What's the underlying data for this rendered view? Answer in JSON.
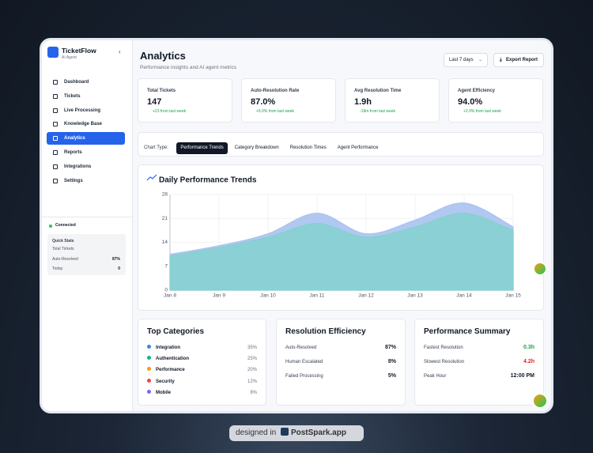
{
  "sidebar": {
    "brand": "TicketFlow",
    "subtitle": "AI Agent",
    "nav": [
      "Dashboard",
      "Tickets",
      "Live Processing",
      "Knowledge Base",
      "Analytics",
      "Reports",
      "Integrations",
      "Settings"
    ],
    "active": 4,
    "status": "Connected",
    "quick_stats": {
      "title": "Quick Stats",
      "rows": [
        {
          "label": "Total Tickets"
        },
        {
          "label": "Auto-Resolved",
          "value": "87%"
        },
        {
          "label": "Today",
          "value": "0"
        }
      ]
    }
  },
  "header": {
    "title": "Analytics",
    "subtitle": "Performance insights and AI agent metrics",
    "range": "Last 7 days",
    "export": "Export Report"
  },
  "kpis": [
    {
      "label": "Total Tickets",
      "value": "147",
      "delta": "+23 from last week"
    },
    {
      "label": "Auto-Resolution Rate",
      "value": "87.0%",
      "delta": "+5.0% from last week"
    },
    {
      "label": "Avg Resolution Time",
      "value": "1.9h",
      "delta": "-18m from last week"
    },
    {
      "label": "Agent Efficiency",
      "value": "94.0%",
      "delta": "+2.0% from last week"
    }
  ],
  "chart_tabs": {
    "label": "Chart Type:",
    "tabs": [
      "Performance Trends",
      "Category Breakdown",
      "Resolution Times",
      "Agent Performance"
    ],
    "active": 0
  },
  "chart_data": {
    "type": "area",
    "title": "Daily Performance Trends",
    "categories": [
      "Jan 8",
      "Jan 9",
      "Jan 10",
      "Jan 11",
      "Jan 12",
      "Jan 13",
      "Jan 14",
      "Jan 15"
    ],
    "series": [
      {
        "color": "#a8c2f0",
        "values": [
          10.5,
          13,
          16.5,
          22.5,
          16.5,
          20.5,
          25.5,
          18.5
        ]
      },
      {
        "color": "#86d0d0",
        "values": [
          10,
          12.5,
          15.5,
          19.5,
          15.5,
          18.5,
          22.5,
          17.5
        ]
      }
    ],
    "ylim": [
      0,
      28
    ],
    "yticks": [
      0,
      7,
      14,
      21,
      28
    ],
    "grid": true
  },
  "top_categories": {
    "title": "Top Categories",
    "items": [
      {
        "label": "Integration",
        "value": "35%",
        "color": "#3b82f6"
      },
      {
        "label": "Authentication",
        "value": "25%",
        "color": "#10b981"
      },
      {
        "label": "Performance",
        "value": "20%",
        "color": "#f59e0b"
      },
      {
        "label": "Security",
        "value": "12%",
        "color": "#ef4444"
      },
      {
        "label": "Mobile",
        "value": "8%",
        "color": "#8b5cf6"
      }
    ]
  },
  "resolution_efficiency": {
    "title": "Resolution Efficiency",
    "rows": [
      {
        "label": "Auto-Resolved",
        "value": "87%"
      },
      {
        "label": "Human Escalated",
        "value": "8%"
      },
      {
        "label": "Failed Processing",
        "value": "5%"
      }
    ]
  },
  "performance_summary": {
    "title": "Performance Summary",
    "rows": [
      {
        "label": "Fastest Resolution",
        "value": "0.3h",
        "color": "#16a34a"
      },
      {
        "label": "Slowest Resolution",
        "value": "4.2h",
        "color": "#dc2626"
      },
      {
        "label": "Peak Hour",
        "value": "12:00 PM"
      }
    ]
  },
  "badge": {
    "prefix": "designed in",
    "brand": "PostSpark.app"
  }
}
